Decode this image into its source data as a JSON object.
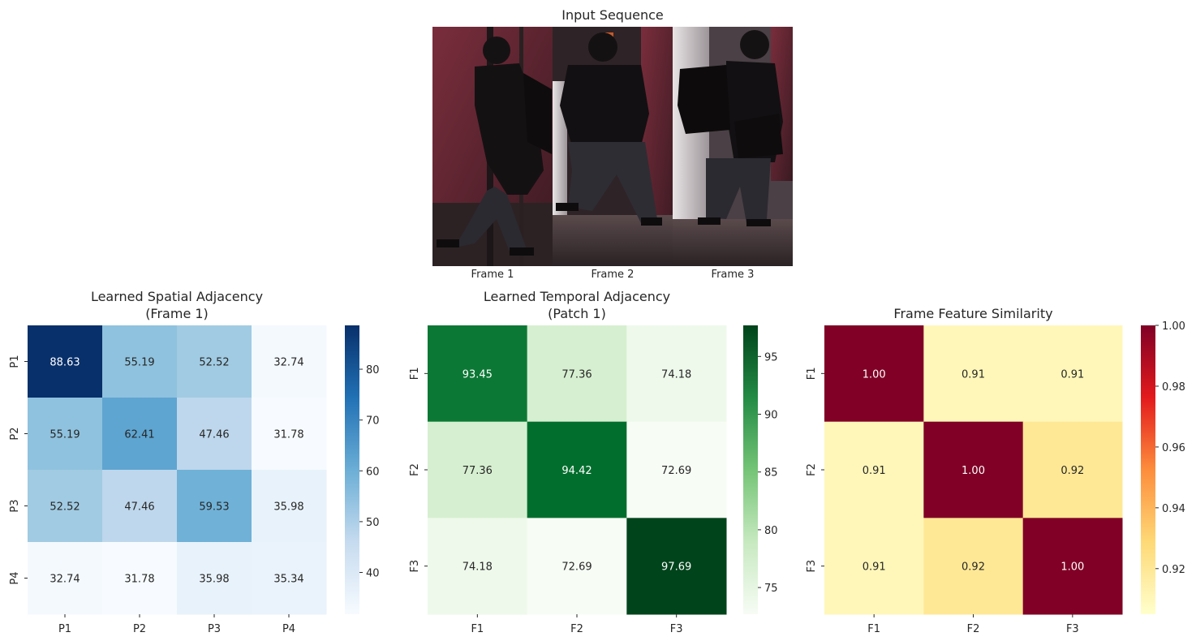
{
  "input_sequence": {
    "title": "Input Sequence",
    "frames": [
      "Frame 1",
      "Frame 2",
      "Frame 3"
    ]
  },
  "chart_data": [
    {
      "type": "heatmap",
      "title": "Learned Spatial Adjacency\n(Frame 1)",
      "xticks": [
        "P1",
        "P2",
        "P3",
        "P4"
      ],
      "yticks": [
        "P1",
        "P2",
        "P3",
        "P4"
      ],
      "values": [
        [
          88.63,
          55.19,
          52.52,
          32.74
        ],
        [
          55.19,
          62.41,
          47.46,
          31.78
        ],
        [
          52.52,
          47.46,
          59.53,
          35.98
        ],
        [
          32.74,
          31.78,
          35.98,
          35.34
        ]
      ],
      "value_format": "2f",
      "colormap": "Blues",
      "vmin": 31.78,
      "vmax": 88.63,
      "colorbar_ticks": [
        40,
        50,
        60,
        70,
        80
      ]
    },
    {
      "type": "heatmap",
      "title": "Learned Temporal Adjacency\n(Patch 1)",
      "xticks": [
        "F1",
        "F2",
        "F3"
      ],
      "yticks": [
        "F1",
        "F2",
        "F3"
      ],
      "values": [
        [
          93.45,
          77.36,
          74.18
        ],
        [
          77.36,
          94.42,
          72.69
        ],
        [
          74.18,
          72.69,
          97.69
        ]
      ],
      "value_format": "2f",
      "colormap": "Greens",
      "vmin": 72.69,
      "vmax": 97.69,
      "colorbar_ticks": [
        75,
        80,
        85,
        90,
        95
      ]
    },
    {
      "type": "heatmap",
      "title": "Frame Feature Similarity",
      "xticks": [
        "F1",
        "F2",
        "F3"
      ],
      "yticks": [
        "F1",
        "F2",
        "F3"
      ],
      "values": [
        [
          1.0,
          0.91,
          0.91
        ],
        [
          0.91,
          1.0,
          0.92
        ],
        [
          0.91,
          0.92,
          1.0
        ]
      ],
      "value_format": "2f",
      "colormap": "YlOrRd",
      "vmin": 0.905,
      "vmax": 1.0,
      "colorbar_ticks": [
        0.92,
        0.94,
        0.96,
        0.98,
        1.0
      ]
    }
  ]
}
